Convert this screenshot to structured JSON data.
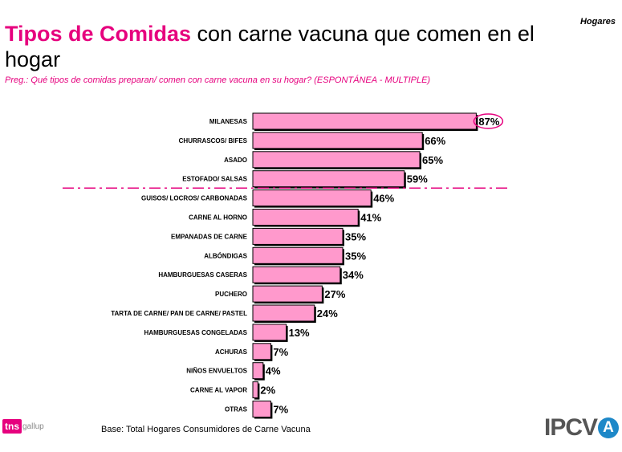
{
  "header": {
    "corner_label": "Hogares",
    "title_highlight": "Tipos de Comidas",
    "title_rest": " con carne vacuna que comen en el hogar",
    "question": "Preg.: Qué tipos de comidas preparan/ comen con carne vacuna en su hogar? (ESPONTÁNEA - MULTIPLE)"
  },
  "chart_data": {
    "type": "bar",
    "orientation": "horizontal",
    "categories": [
      "MILANESAS",
      "CHURRASCOS/ BIFES",
      "ASADO",
      "ESTOFADO/ SALSAS",
      "GUISOS/ LOCROS/ CARBONADAS",
      "CARNE AL HORNO",
      "EMPANADAS DE CARNE",
      "ALBÓNDIGAS",
      "HAMBURGUESAS CASERAS",
      "PUCHERO",
      "TARTA DE CARNE/ PAN DE CARNE/ PASTEL",
      "HAMBURGUESAS CONGELADAS",
      "ACHURAS",
      "NIÑOS ENVUELTOS",
      "CARNE AL VAPOR",
      "OTRAS"
    ],
    "values": [
      87,
      66,
      65,
      59,
      46,
      41,
      35,
      35,
      34,
      27,
      24,
      13,
      7,
      4,
      2,
      7
    ],
    "value_labels": [
      "87%",
      "66%",
      "65%",
      "59%",
      "46%",
      "41%",
      "35%",
      "35%",
      "34%",
      "27%",
      "24%",
      "13%",
      "7%",
      "4%",
      "2%",
      "7%"
    ],
    "xlim": [
      0,
      100
    ],
    "highlighted_category": "MILANESAS",
    "divider_after_category": "ESTOFADO/ SALSAS",
    "bar_color": "#ff99cc",
    "accent_color": "#e6007e"
  },
  "footer": {
    "base": "Base: Total Hogares Consumidores de Carne Vacuna",
    "logo_tns": "tns",
    "logo_tns_sub": "gallup",
    "logo_ipcva": "IPCV",
    "logo_ipcva_mark": "A"
  }
}
